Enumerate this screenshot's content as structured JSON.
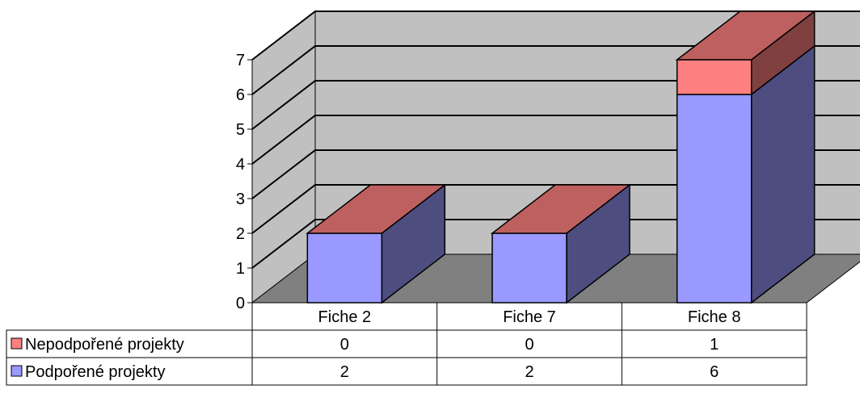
{
  "chart_data": {
    "type": "bar",
    "stacked": true,
    "three_d": true,
    "categories": [
      "Fiche 2",
      "Fiche 7",
      "Fiche 8"
    ],
    "series": [
      {
        "name": "Podpořené projekty",
        "values": [
          2,
          2,
          6
        ],
        "color": "#9999ff"
      },
      {
        "name": "Nepodpořené projekty",
        "values": [
          0,
          0,
          1
        ],
        "color": "#ff8080"
      }
    ],
    "y_ticks": [
      "0",
      "1",
      "2",
      "3",
      "4",
      "5",
      "6",
      "7"
    ],
    "ylim": [
      0,
      7
    ],
    "grid": true,
    "legend": "data-table"
  }
}
